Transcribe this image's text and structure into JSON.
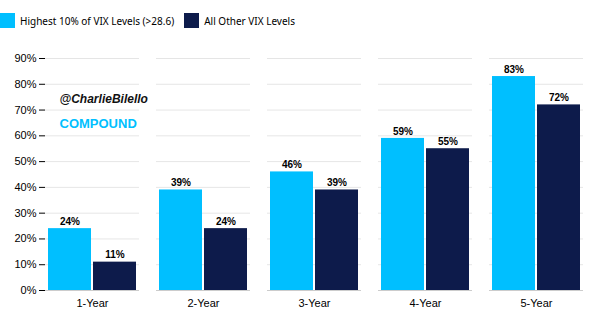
{
  "chart_data": {
    "type": "bar",
    "categories": [
      "1-Year",
      "2-Year",
      "3-Year",
      "4-Year",
      "5-Year"
    ],
    "series": [
      {
        "name": "Highest 10% of VIX Levels (>28.6)",
        "color": "#00BFFF",
        "values": [
          24,
          39,
          46,
          59,
          83
        ],
        "value_labels": [
          "24%",
          "39%",
          "46%",
          "59%",
          "83%"
        ]
      },
      {
        "name": "All Other VIX Levels",
        "color": "#0D1B4B",
        "values": [
          11,
          24,
          39,
          55,
          72
        ],
        "value_labels": [
          "11%",
          "24%",
          "39%",
          "55%",
          "72%"
        ]
      }
    ],
    "ylim": [
      0,
      90
    ],
    "yticks": [
      {
        "value": 0,
        "label": "0%"
      },
      {
        "value": 10,
        "label": "10%"
      },
      {
        "value": 20,
        "label": "20%"
      },
      {
        "value": 30,
        "label": "30%"
      },
      {
        "value": 40,
        "label": "40%"
      },
      {
        "value": 50,
        "label": "50%"
      },
      {
        "value": 60,
        "label": "60%"
      },
      {
        "value": 70,
        "label": "70%"
      },
      {
        "value": 80,
        "label": "80%"
      },
      {
        "value": 90,
        "label": "90%"
      }
    ],
    "grid": true,
    "legend": "top",
    "data_labels": true,
    "annotations": [
      "@CharlieBilello",
      "COMPOUND"
    ]
  }
}
